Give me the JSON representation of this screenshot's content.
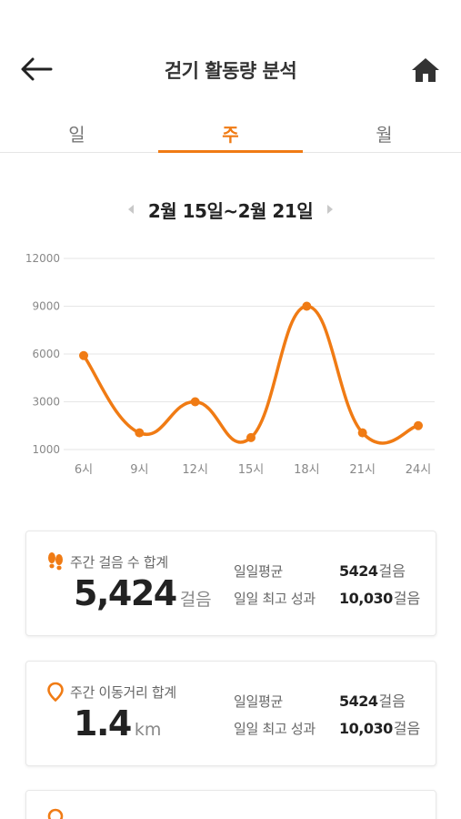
{
  "header": {
    "title": "걷기 활동량 분석",
    "back_icon": "arrow-left-icon",
    "home_icon": "home-icon"
  },
  "tabs": [
    {
      "label": "일",
      "active": false
    },
    {
      "label": "주",
      "active": true
    },
    {
      "label": "월",
      "active": false
    }
  ],
  "date_nav": {
    "label": "2월 15일~2월 21일",
    "prev_icon": "triangle-left-icon",
    "next_icon": "triangle-right-icon"
  },
  "colors": {
    "accent": "#f07b14",
    "grid": "#e6e6e6",
    "tick": "#888888"
  },
  "chart_data": {
    "type": "line",
    "categories": [
      "6시",
      "9시",
      "12시",
      "15시",
      "18시",
      "21시",
      "24시"
    ],
    "series": [
      {
        "values": [
          5900,
          1700,
          3000,
          1500,
          9000,
          1700,
          2000
        ]
      }
    ],
    "yticks": [
      1000,
      3000,
      6000,
      9000,
      12000
    ],
    "ylim": [
      1000,
      12000
    ],
    "grid": true,
    "smooth": true
  },
  "cards": [
    {
      "icon": "footprints-icon",
      "title": "주간 걸음 수 합계",
      "value": "5,424",
      "unit": "걸음",
      "stats": [
        {
          "label": "일일평균",
          "value": "5424",
          "unit": "걸음"
        },
        {
          "label": "일일 최고 성과",
          "value": "10,030",
          "unit": "걸음"
        }
      ]
    },
    {
      "icon": "location-pin-icon",
      "title": "주간 이동거리 합계",
      "value": "1.4",
      "unit": "km",
      "stats": [
        {
          "label": "일일평균",
          "value": "5424",
          "unit": "걸음"
        },
        {
          "label": "일일 최고 성과",
          "value": "10,030",
          "unit": "걸음"
        }
      ]
    }
  ]
}
